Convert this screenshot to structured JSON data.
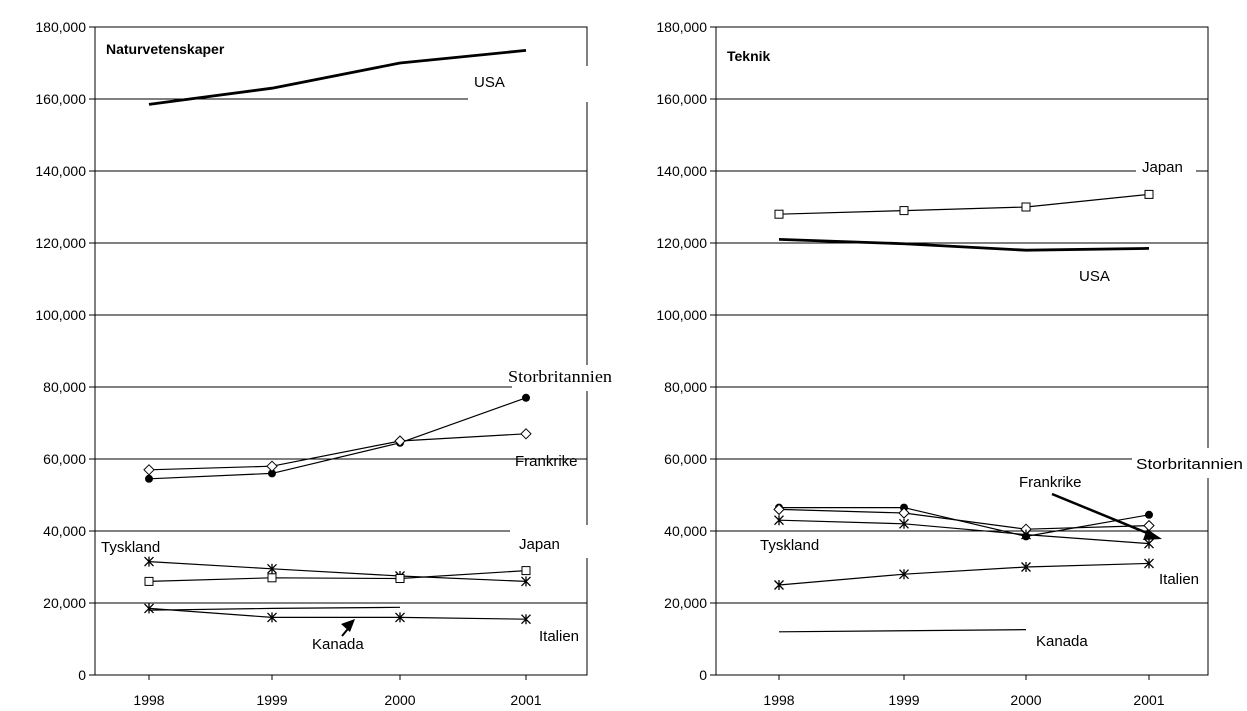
{
  "chart_data": [
    {
      "type": "line",
      "title": "Naturvetenskaper",
      "xlabel": "",
      "ylabel": "",
      "ylim": [
        0,
        180000
      ],
      "yticks": [
        "0",
        "20,000",
        "40,000",
        "60,000",
        "80,000",
        "100,000",
        "120,000",
        "140,000",
        "160,000",
        "180,000"
      ],
      "categories": [
        "1998",
        "1999",
        "2000",
        "2001"
      ],
      "grid": true,
      "series": [
        {
          "name": "USA",
          "marker": "none",
          "bold": true,
          "values": [
            158500,
            163000,
            170000,
            173500
          ]
        },
        {
          "name": "Storbritannien",
          "marker": "dot",
          "values": [
            54500,
            56000,
            64500,
            77000
          ]
        },
        {
          "name": "Frankrike",
          "marker": "diamond",
          "values": [
            57000,
            58000,
            65000,
            67000
          ]
        },
        {
          "name": "Tyskland",
          "marker": "star",
          "values": [
            31500,
            29500,
            27500,
            26000
          ]
        },
        {
          "name": "Japan",
          "marker": "square",
          "values": [
            26000,
            27000,
            26800,
            29000
          ]
        },
        {
          "name": "Kanada",
          "marker": "none",
          "values": [
            18000,
            18500,
            18800,
            null
          ]
        },
        {
          "name": "Italien",
          "marker": "star",
          "values": [
            18500,
            16000,
            16000,
            15500
          ]
        }
      ],
      "annotations": [
        "USA",
        "Storbritannien",
        "Frankrike",
        "Tyskland",
        "Japan",
        "Kanada",
        "Italien"
      ]
    },
    {
      "type": "line",
      "title": "Teknik",
      "xlabel": "",
      "ylabel": "",
      "ylim": [
        0,
        180000
      ],
      "yticks": [
        "0",
        "20,000",
        "40,000",
        "60,000",
        "80,000",
        "100,000",
        "120,000",
        "140,000",
        "160,000",
        "180,000"
      ],
      "categories": [
        "1998",
        "1999",
        "2000",
        "2001"
      ],
      "grid": true,
      "series": [
        {
          "name": "Japan",
          "marker": "square",
          "values": [
            128000,
            129000,
            130000,
            133500
          ]
        },
        {
          "name": "USA",
          "marker": "none",
          "bold": true,
          "values": [
            121000,
            119800,
            118000,
            118500
          ]
        },
        {
          "name": "Storbritannien",
          "marker": "dot",
          "values": [
            46500,
            46500,
            38500,
            44500
          ]
        },
        {
          "name": "Frankrike",
          "marker": "diamond",
          "values": [
            46000,
            45000,
            40500,
            41500
          ]
        },
        {
          "name": "Tyskland",
          "marker": "star",
          "values": [
            43000,
            42000,
            39000,
            36500
          ]
        },
        {
          "name": "Italien",
          "marker": "star",
          "values": [
            25000,
            28000,
            30000,
            31000
          ]
        },
        {
          "name": "Kanada",
          "marker": "none",
          "values": [
            12000,
            12300,
            12600,
            null
          ]
        }
      ],
      "annotations": [
        "Japan",
        "USA",
        "Storbritannien",
        "Frankrike",
        "Tyskland",
        "Italien",
        "Kanada"
      ]
    }
  ]
}
